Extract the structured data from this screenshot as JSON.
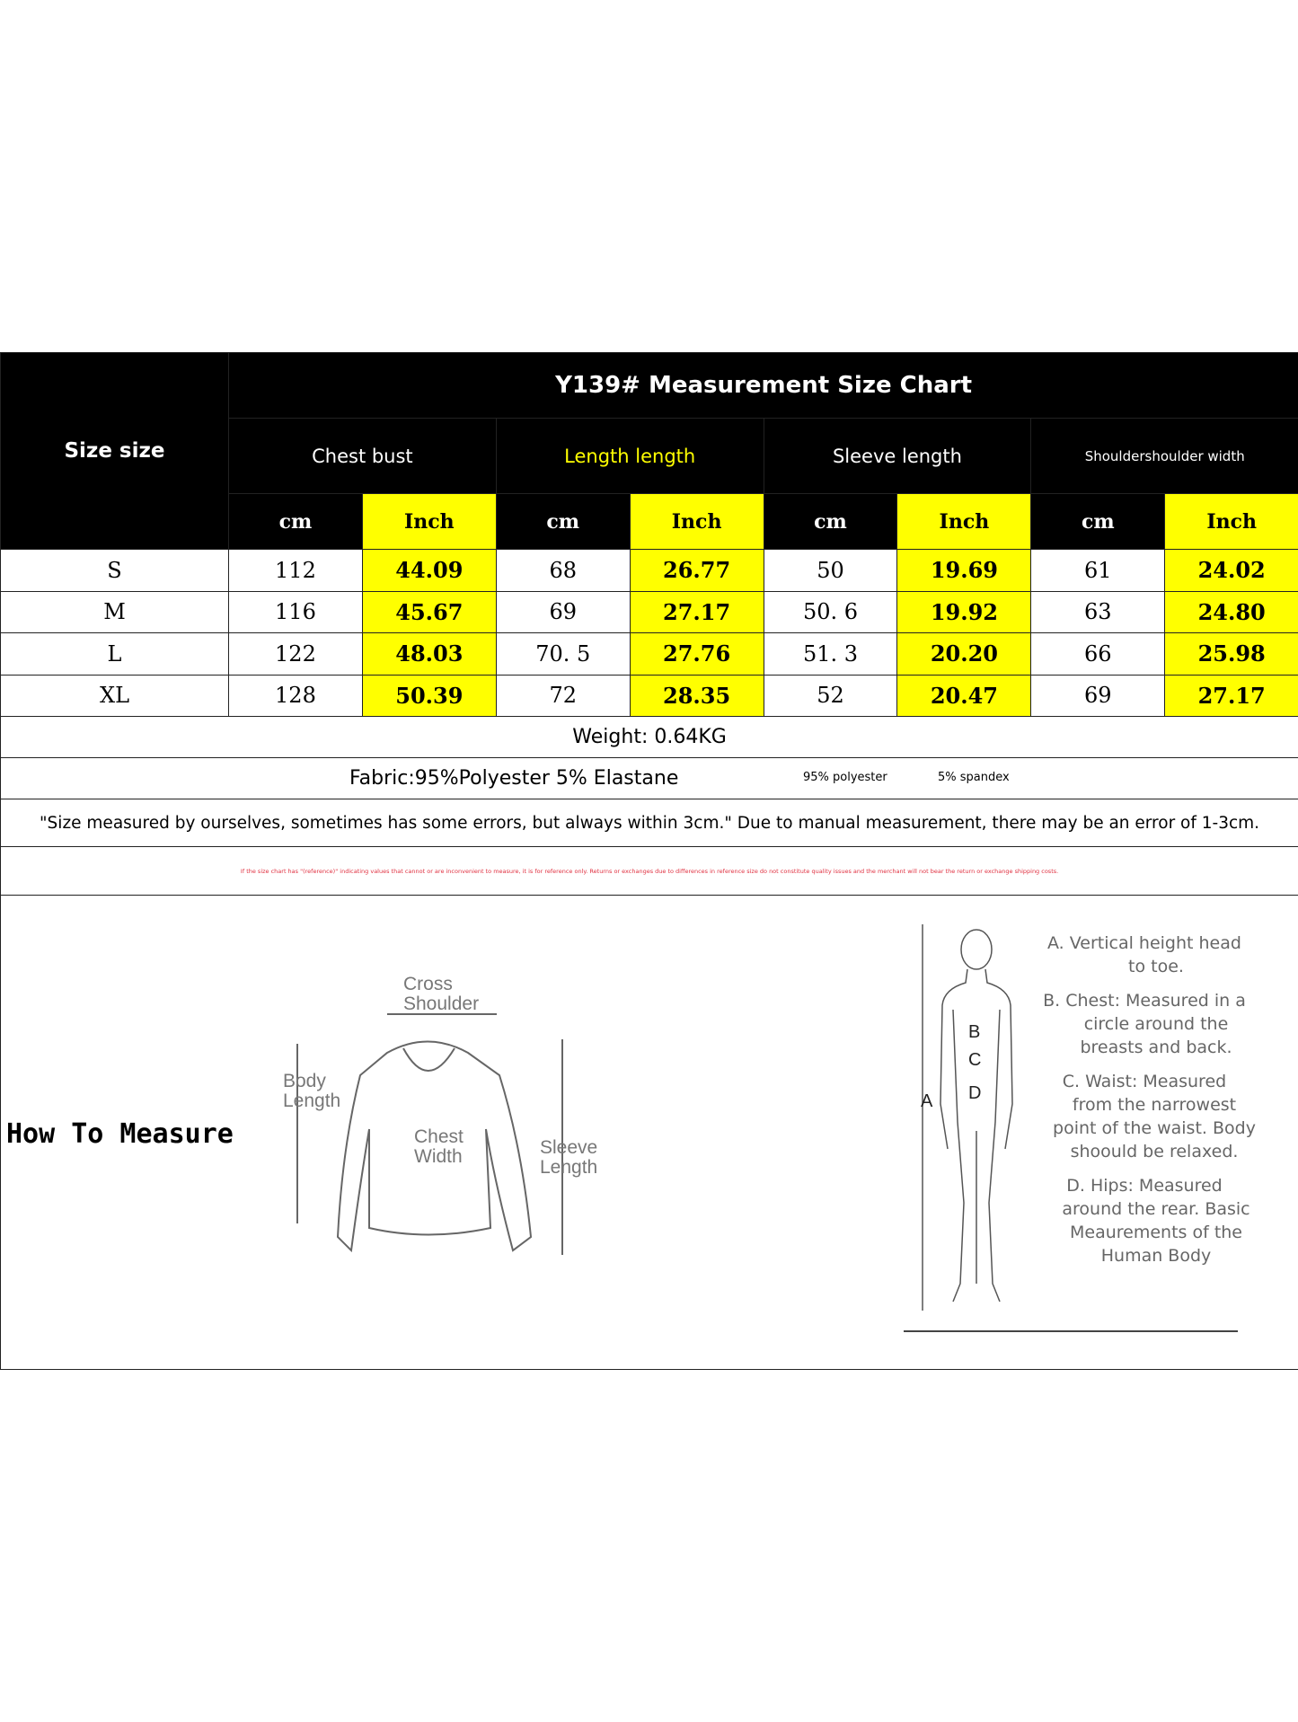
{
  "title": "Y139# Measurement Size Chart",
  "size_header": "Size size",
  "groups": [
    "Chest bust",
    "Length length",
    "Sleeve length",
    "Shouldershoulder width"
  ],
  "units": {
    "cm": "cm",
    "inch": "Inch"
  },
  "rows": [
    {
      "size": "S",
      "values": [
        "112",
        "44.09",
        "68",
        "26.77",
        "50",
        "19.69",
        "61",
        "24.02"
      ]
    },
    {
      "size": "M",
      "values": [
        "116",
        "45.67",
        "69",
        "27.17",
        "50. 6",
        "19.92",
        "63",
        "24.80"
      ]
    },
    {
      "size": "L",
      "values": [
        "122",
        "48.03",
        "70. 5",
        "27.76",
        "51. 3",
        "20.20",
        "66",
        "25.98"
      ]
    },
    {
      "size": "XL",
      "values": [
        "128",
        "50.39",
        "72",
        "28.35",
        "52",
        "20.47",
        "69",
        "27.17"
      ]
    }
  ],
  "weight": "Weight: 0.64KG",
  "fabric": "Fabric:95%Polyester 5% Elastane",
  "fabric_small": [
    "95% polyester",
    "5% spandex"
  ],
  "note": "\"Size measured by ourselves, sometimes has some errors, but always within 3cm.\" Due to manual measurement, there may be an error of 1-3cm.",
  "disclaimer": "If the size chart has \"(reference)\" indicating values that cannot or are inconvenient to measure, it is for reference only. Returns or exchanges due to differences in reference size do not constitute quality issues and the merchant will not bear the return or exchange shipping costs.",
  "how_to_measure": "How To Measure",
  "shirt_labels": {
    "cross": "Cross Shoulder",
    "body": "Body Length",
    "chest": "Chest Width",
    "sleeve": "Sleeve Length"
  },
  "body_letters": [
    "A",
    "B",
    "C",
    "D"
  ],
  "instructions": [
    {
      "head": "A. Vertical height head",
      "rest": "to toe."
    },
    {
      "head": "B. Chest: Measured in a",
      "rest": "circle around the breasts and back."
    },
    {
      "head": "C. Waist: Measured",
      "rest": "from the narrowest point of the waist. Body shoould be relaxed."
    },
    {
      "head": "D. Hips: Measured",
      "rest": "around the rear. Basic Meaurements of the Human Body"
    }
  ],
  "colors": {
    "highlight": "#ffff00",
    "header": "#000000",
    "disclaimer": "#e03040"
  }
}
